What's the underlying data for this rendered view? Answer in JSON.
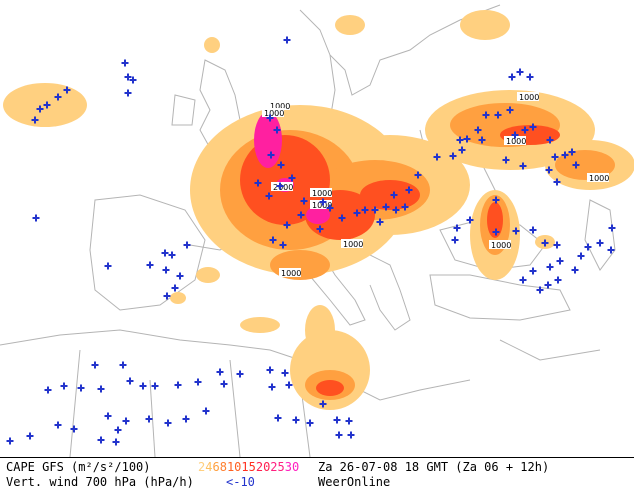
{
  "legend": {
    "title": "CAPE GFS (m²/s²/100)",
    "scale": [
      {
        "label": "2",
        "color": "#ffd080"
      },
      {
        "label": "4",
        "color": "#ffc060"
      },
      {
        "label": "6",
        "color": "#ffa040"
      },
      {
        "label": "8",
        "color": "#ff8030"
      },
      {
        "label": "10",
        "color": "#ff6020"
      },
      {
        "label": "15",
        "color": "#ff3020"
      },
      {
        "label": "20",
        "color": "#ff2050"
      },
      {
        "label": "25",
        "color": "#ff2080"
      },
      {
        "label": "30",
        "color": "#ff20c0"
      }
    ],
    "vert_wind": "Vert. wind 700 hPa (hPa/h)",
    "wind_threshold": "<-10",
    "date": "Za 26-07-08 18 GMT (Za 06 + 12h)",
    "brand": "WeerOnline"
  },
  "map_labels": [
    "1000",
    "1000",
    "2000",
    "1000",
    "1000",
    "1000",
    "1000",
    "1000",
    "1000",
    "1000",
    "1000",
    "1000"
  ],
  "colors": {
    "cape_low": "#ffd080",
    "cape_mid": "#ffa040",
    "cape_high": "#ff5020",
    "cape_peak": "#ff20a0",
    "wind_marker": "#2233cc",
    "coastline": "#b4b4b4"
  }
}
